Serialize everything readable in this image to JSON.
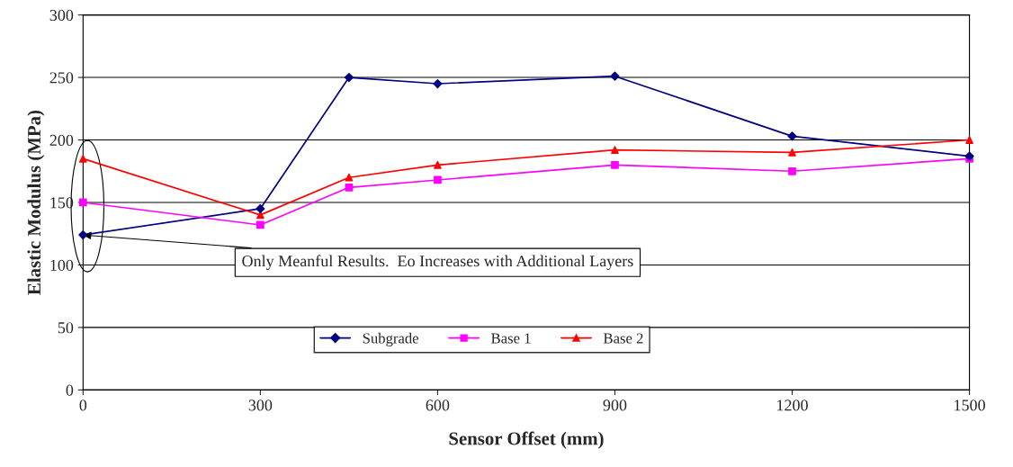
{
  "chart_data": {
    "type": "line",
    "xlabel": "Sensor Offset (mm)",
    "ylabel": "Elastic Modulus (MPa)",
    "x": [
      0,
      300,
      450,
      600,
      900,
      1200,
      1500
    ],
    "series": [
      {
        "name": "Subgrade",
        "color": "#000080",
        "marker": "diamond",
        "values": [
          124,
          145,
          250,
          245,
          251,
          203,
          187
        ]
      },
      {
        "name": "Base 1",
        "color": "#ff00ff",
        "marker": "square",
        "values": [
          150,
          132,
          162,
          168,
          180,
          175,
          185
        ]
      },
      {
        "name": "Base 2",
        "color": "#ff0000",
        "marker": "triangle",
        "values": [
          185,
          140,
          170,
          180,
          192,
          190,
          200
        ]
      }
    ],
    "xlim": [
      0,
      1500
    ],
    "xticks": [
      0,
      300,
      600,
      900,
      1200,
      1500
    ],
    "ylim": [
      0,
      300
    ],
    "yticks": [
      0,
      50,
      100,
      150,
      200,
      250,
      300
    ],
    "grid": "y",
    "legend": "bottom",
    "line_style": "solid",
    "annotations": [
      {
        "text": "Only Meanful Results.  Eo Increases with Additional Layers",
        "x": 0,
        "y": 124
      }
    ]
  }
}
